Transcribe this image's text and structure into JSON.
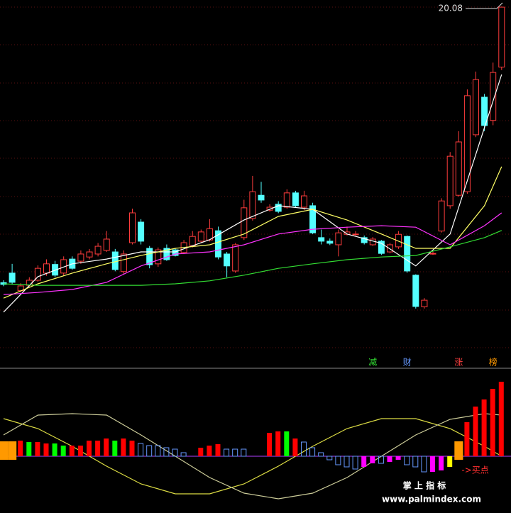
{
  "chart_data": [
    {
      "type": "candlestick",
      "ylim": [
        8.4,
        20.3
      ],
      "up_color": "#ff3c3c",
      "down_color": "#54ffff",
      "open": [
        10.82,
        11.14,
        10.55,
        10.73,
        10.9,
        11.14,
        11.43,
        11.14,
        11.61,
        11.54,
        11.68,
        11.78,
        11.9,
        11.85,
        11.19,
        12.16,
        12.85,
        11.97,
        11.45,
        11.97,
        11.92,
        11.83,
        12.06,
        12.21,
        12.25,
        12.56,
        11.78,
        11.21,
        12.33,
        12.97,
        13.75,
        13.25,
        13.45,
        13.35,
        13.83,
        13.35,
        13.4,
        12.33,
        12.21,
        12.09,
        12.44,
        12.45,
        12.33,
        12.09,
        12.21,
        11.85,
        12.02,
        12.37,
        11.07,
        10.01,
        11.8,
        12.55,
        13.4,
        13.75,
        13.87,
        15.78,
        17.04,
        16.26,
        18.05
      ],
      "high": [
        10.9,
        11.45,
        10.8,
        11.0,
        11.4,
        11.6,
        11.55,
        11.7,
        11.7,
        11.9,
        11.95,
        12.15,
        12.55,
        11.95,
        11.9,
        13.3,
        12.95,
        12.05,
        12.0,
        12.1,
        11.97,
        12.25,
        12.55,
        12.6,
        12.95,
        12.7,
        11.85,
        12.15,
        13.6,
        14.4,
        14.2,
        13.45,
        13.55,
        13.95,
        13.9,
        13.9,
        13.5,
        12.6,
        12.3,
        12.6,
        12.7,
        12.55,
        12.4,
        12.35,
        12.25,
        12.15,
        12.55,
        12.4,
        11.1,
        10.3,
        11.85,
        13.65,
        15.2,
        15.9,
        17.3,
        17.9,
        17.15,
        18.2,
        20.08
      ],
      "low": [
        10.7,
        10.75,
        10.5,
        10.65,
        10.85,
        11.05,
        11.0,
        11.05,
        11.25,
        11.45,
        11.6,
        11.7,
        11.85,
        11.2,
        11.1,
        12.1,
        12.1,
        11.3,
        11.35,
        11.55,
        11.7,
        11.78,
        12.0,
        12.15,
        12.2,
        11.6,
        11.0,
        11.15,
        12.25,
        12.9,
        13.5,
        13.2,
        13.15,
        13.3,
        13.35,
        13.25,
        12.45,
        12.1,
        12.08,
        11.7,
        12.4,
        12.4,
        12.1,
        12.05,
        11.75,
        11.8,
        11.95,
        11.15,
        9.95,
        9.95,
        11.75,
        12.5,
        13.3,
        13.7,
        13.8,
        15.7,
        15.9,
        16.1,
        17.95
      ],
      "close": [
        10.76,
        10.83,
        10.71,
        10.9,
        11.3,
        11.45,
        11.07,
        11.59,
        11.3,
        11.78,
        11.85,
        12.04,
        12.28,
        11.26,
        11.78,
        13.16,
        12.21,
        11.42,
        11.92,
        11.59,
        11.73,
        12.16,
        12.37,
        12.52,
        12.63,
        11.68,
        11.38,
        12.09,
        13.33,
        13.87,
        13.59,
        13.35,
        13.21,
        13.83,
        13.4,
        13.73,
        12.49,
        12.21,
        12.14,
        12.49,
        12.52,
        12.45,
        12.16,
        12.28,
        11.8,
        12.09,
        12.44,
        11.21,
        10.02,
        10.23,
        11.8,
        13.56,
        15.06,
        15.54,
        17.09,
        17.63,
        16.09,
        17.87,
        20.06
      ],
      "lines": [
        {
          "color": "#ffffff",
          "x": [
            0,
            4,
            8,
            12,
            16,
            20,
            24,
            28,
            32,
            36,
            40,
            44,
            48,
            52,
            56,
            58
          ],
          "values": [
            9.83,
            11.02,
            11.45,
            11.61,
            11.85,
            11.85,
            12.26,
            12.92,
            13.4,
            13.28,
            12.45,
            12.14,
            11.38,
            12.45,
            16.02,
            17.8
          ]
        },
        {
          "color": "#ffff66",
          "x": [
            0,
            4,
            8,
            12,
            16,
            20,
            24,
            28,
            32,
            36,
            40,
            44,
            48,
            52,
            56,
            58
          ],
          "values": [
            10.3,
            10.78,
            11.14,
            11.45,
            11.73,
            11.97,
            12.09,
            12.45,
            13.04,
            13.28,
            12.92,
            12.45,
            11.97,
            11.97,
            13.4,
            14.71
          ]
        },
        {
          "color": "#ff33ff",
          "x": [
            0,
            4,
            8,
            12,
            16,
            20,
            24,
            28,
            32,
            36,
            40,
            44,
            48,
            52,
            56,
            58
          ],
          "values": [
            10.42,
            10.49,
            10.59,
            10.83,
            11.38,
            11.78,
            11.85,
            12.09,
            12.45,
            12.61,
            12.68,
            12.73,
            12.68,
            12.09,
            12.73,
            13.16
          ]
        },
        {
          "color": "#33dd33",
          "x": [
            0,
            4,
            8,
            12,
            16,
            20,
            24,
            28,
            32,
            36,
            40,
            44,
            48,
            52,
            56,
            58
          ],
          "values": [
            10.78,
            10.73,
            10.73,
            10.73,
            10.73,
            10.78,
            10.88,
            11.07,
            11.3,
            11.45,
            11.59,
            11.68,
            11.73,
            12.02,
            12.33,
            12.57
          ]
        }
      ],
      "high_label": 20.08,
      "markers": [
        {
          "label": "减",
          "index": 43,
          "color": "#33dd33"
        },
        {
          "label": "财",
          "index": 47,
          "color": "#6699ff"
        },
        {
          "label": "涨",
          "index": 53,
          "color": "#ff4040"
        },
        {
          "label": "榜",
          "index": 57,
          "color": "#ff9900"
        }
      ]
    },
    {
      "type": "bar",
      "ylim": [
        -0.8,
        1.2
      ],
      "baseline": 0,
      "baseline_color": "#b040ff",
      "outline_color": "#6699ff",
      "values": [
        null,
        null,
        0.22,
        0.2,
        0.2,
        0.18,
        0.18,
        0.15,
        0.15,
        0.15,
        0.22,
        0.22,
        0.25,
        0.22,
        0.25,
        0.22,
        0.18,
        0.15,
        0.15,
        0.12,
        0.1,
        0.05,
        null,
        0.12,
        0.15,
        0.17,
        0.1,
        0.1,
        0.1,
        null,
        null,
        0.33,
        0.35,
        0.35,
        0.25,
        0.2,
        0.12,
        0.05,
        -0.05,
        -0.12,
        -0.15,
        -0.18,
        -0.15,
        -0.1,
        -0.1,
        -0.08,
        -0.05,
        -0.12,
        -0.15,
        -0.22,
        -0.22,
        -0.2,
        -0.15,
        null,
        0.48,
        0.7,
        0.8,
        0.95,
        1.05
      ],
      "colors": [
        "#ff0000",
        "#ff0000",
        "#ff0000",
        "#00ff00",
        "#ff0000",
        "#ff0000",
        "#00ff00",
        "#00ff00",
        "#ff0000",
        "#ff0000",
        "#ff0000",
        "#ff0000",
        "#ff0000",
        "#00ff00",
        "#ff0000",
        "#ff0000",
        "#6699ff",
        "#6699ff",
        "#6699ff",
        "#6699ff",
        "#6699ff",
        "#6699ff",
        "#ff0000",
        "#ff0000",
        "#ff0000",
        "#ff0000",
        "#6699ff",
        "#6699ff",
        "#6699ff",
        "#ff0000",
        "#ff0000",
        "#ff0000",
        "#ff0000",
        "#00ff00",
        "#ff0000",
        "#6699ff",
        "#6699ff",
        "#6699ff",
        "#6699ff",
        "#6699ff",
        "#6699ff",
        "#6699ff",
        "#ff00ff",
        "#ff00ff",
        "#6699ff",
        "#ff00ff",
        "#ff00ff",
        "#6699ff",
        "#6699ff",
        "#6699ff",
        "#ff00ff",
        "#ff00ff",
        "#ffff00",
        "#ff0000",
        "#ff0000",
        "#ff0000",
        "#ff0000",
        "#ff0000",
        "#ff0000"
      ],
      "signals": [
        {
          "index": 0,
          "low": -0.05,
          "high": 0.21,
          "color": "#ff9900"
        },
        {
          "index": 1,
          "low": -0.05,
          "high": 0.21,
          "color": "#ff9900"
        },
        {
          "index": 53,
          "low": -0.05,
          "high": 0.21,
          "color": "#ff9900"
        }
      ],
      "lines": [
        {
          "color": "#dddd44",
          "x": [
            0,
            4,
            8,
            12,
            16,
            20,
            24,
            28,
            32,
            36,
            40,
            44,
            48,
            52,
            56,
            58
          ],
          "values": [
            0.53,
            0.39,
            0.14,
            -0.14,
            -0.39,
            -0.53,
            -0.53,
            -0.39,
            -0.14,
            0.14,
            0.39,
            0.53,
            0.53,
            0.39,
            0.14,
            0
          ]
        },
        {
          "color": "#cccc99",
          "x": [
            0,
            4,
            8,
            12,
            16,
            20,
            24,
            28,
            32,
            36,
            40,
            44,
            48,
            52,
            56,
            58
          ],
          "values": [
            0.3,
            0.58,
            0.6,
            0.58,
            0.3,
            0,
            -0.3,
            -0.52,
            -0.6,
            -0.52,
            -0.3,
            0,
            0.3,
            0.52,
            0.6,
            0.58
          ]
        }
      ],
      "annotation": {
        "text": "->买点",
        "index": 54,
        "value": -0.2,
        "color": "#ff3030"
      }
    }
  ],
  "watermark": {
    "title": "掌 上 指 标",
    "url": "www.palmindex.com"
  }
}
